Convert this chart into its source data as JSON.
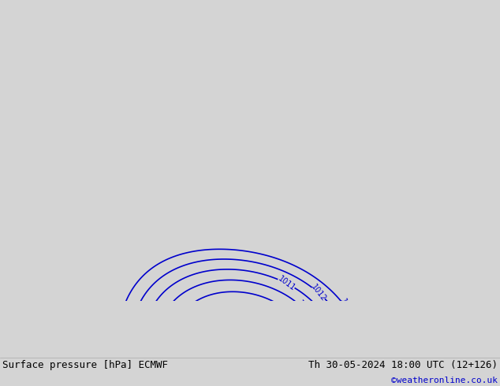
{
  "footer_left": "Surface pressure [hPa] ECMWF",
  "footer_right": "Th 30-05-2024 18:00 UTC (12+126)",
  "footer_credit": "©weatheronline.co.uk",
  "land_color": "#b5d9a0",
  "sea_color": "#d4d4d4",
  "contour_color": "#0000cc",
  "border_color": "#000000",
  "coast_color": "#888888",
  "footer_bg": "#c8f0c8",
  "footer_text_color": "#000000",
  "footer_credit_color": "#0000cc",
  "figsize": [
    6.34,
    4.9
  ],
  "dpi": 100,
  "map_extent": [
    -2.5,
    20.0,
    45.5,
    56.5
  ]
}
